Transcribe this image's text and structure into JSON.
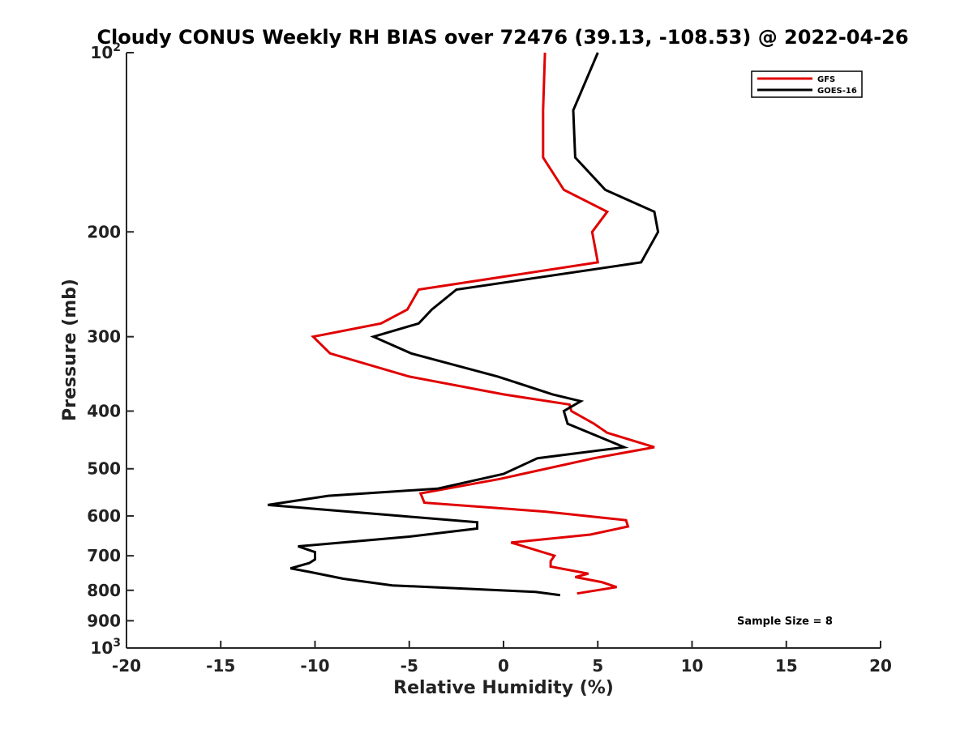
{
  "chart_data": {
    "type": "line",
    "title": "Cloudy CONUS Weekly RH BIAS over 72476 (39.13, -108.53) @ 2022-04-26",
    "xlabel": "Relative Humidity (%)",
    "ylabel": "Pressure (mb)",
    "xlim": [
      -20,
      20
    ],
    "ylim": [
      1000,
      100
    ],
    "y_scale": "log",
    "y_reversed": true,
    "grid": false,
    "x_ticks": [
      -20,
      -15,
      -10,
      -5,
      0,
      5,
      10,
      15,
      20
    ],
    "y_tick_labels": [
      {
        "value": 100,
        "base": "10",
        "exp": "2"
      },
      {
        "value": 200,
        "text": "200"
      },
      {
        "value": 300,
        "text": "300"
      },
      {
        "value": 400,
        "text": "400"
      },
      {
        "value": 500,
        "text": "500"
      },
      {
        "value": 600,
        "text": "600"
      },
      {
        "value": 700,
        "text": "700"
      },
      {
        "value": 800,
        "text": "800"
      },
      {
        "value": 900,
        "text": "900"
      },
      {
        "value": 1000,
        "base": "10",
        "exp": "3"
      }
    ],
    "legend_position": "top-right",
    "annotation": "Sample Size = 8",
    "series": [
      {
        "name": "GFS",
        "color": "#e00000",
        "points": [
          [
            2.2,
            100
          ],
          [
            2.1,
            125
          ],
          [
            2.1,
            150
          ],
          [
            3.2,
            170
          ],
          [
            5.5,
            185
          ],
          [
            4.7,
            200
          ],
          [
            5.0,
            225
          ],
          [
            -4.5,
            250
          ],
          [
            -5.1,
            270
          ],
          [
            -6.5,
            285
          ],
          [
            -10.1,
            300
          ],
          [
            -9.2,
            320
          ],
          [
            -5.0,
            350
          ],
          [
            0.0,
            375
          ],
          [
            3.5,
            390
          ],
          [
            3.6,
            400
          ],
          [
            4.8,
            420
          ],
          [
            5.5,
            435
          ],
          [
            8.0,
            460
          ],
          [
            4.8,
            480
          ],
          [
            -0.2,
            520
          ],
          [
            -4.4,
            550
          ],
          [
            -4.2,
            570
          ],
          [
            2.2,
            590
          ],
          [
            6.5,
            610
          ],
          [
            6.6,
            625
          ],
          [
            4.6,
            645
          ],
          [
            0.4,
            665
          ],
          [
            2.7,
            700
          ],
          [
            2.5,
            715
          ],
          [
            2.5,
            730
          ],
          [
            4.5,
            750
          ],
          [
            3.8,
            760
          ],
          [
            5.2,
            775
          ],
          [
            6.0,
            790
          ],
          [
            3.9,
            810
          ]
        ]
      },
      {
        "name": "GOES-16",
        "color": "#000000",
        "points": [
          [
            5.0,
            100
          ],
          [
            3.7,
            125
          ],
          [
            3.8,
            150
          ],
          [
            5.4,
            170
          ],
          [
            8.0,
            185
          ],
          [
            8.2,
            200
          ],
          [
            7.3,
            225
          ],
          [
            -2.5,
            250
          ],
          [
            -3.8,
            270
          ],
          [
            -4.5,
            285
          ],
          [
            -6.9,
            300
          ],
          [
            -4.9,
            320
          ],
          [
            -0.3,
            350
          ],
          [
            2.6,
            375
          ],
          [
            4.1,
            385
          ],
          [
            3.2,
            400
          ],
          [
            3.4,
            420
          ],
          [
            6.4,
            460
          ],
          [
            1.8,
            480
          ],
          [
            0.0,
            510
          ],
          [
            -3.5,
            540
          ],
          [
            -9.3,
            555
          ],
          [
            -12.5,
            575
          ],
          [
            -5.5,
            600
          ],
          [
            -1.4,
            615
          ],
          [
            -1.4,
            630
          ],
          [
            -5.0,
            650
          ],
          [
            -10.9,
            675
          ],
          [
            -10.0,
            690
          ],
          [
            -10.0,
            710
          ],
          [
            -10.3,
            720
          ],
          [
            -11.3,
            735
          ],
          [
            -10.3,
            745
          ],
          [
            -8.5,
            765
          ],
          [
            -5.9,
            785
          ],
          [
            1.7,
            805
          ],
          [
            3.0,
            815
          ]
        ]
      }
    ]
  }
}
